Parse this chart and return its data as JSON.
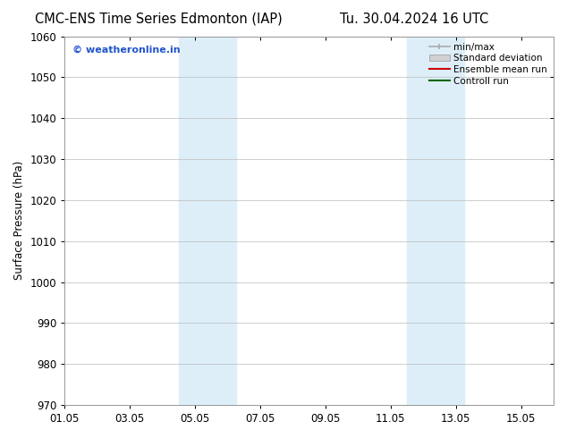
{
  "title_left": "CMC-ENS Time Series Edmonton (IAP)",
  "title_right": "Tu. 30.04.2024 16 UTC",
  "ylabel": "Surface Pressure (hPa)",
  "ylim": [
    970,
    1060
  ],
  "yticks": [
    970,
    980,
    990,
    1000,
    1010,
    1020,
    1030,
    1040,
    1050,
    1060
  ],
  "xtick_labels": [
    "01.05",
    "03.05",
    "05.05",
    "07.05",
    "09.05",
    "11.05",
    "13.05",
    "15.05"
  ],
  "xtick_positions": [
    0,
    2,
    4,
    6,
    8,
    10,
    12,
    14
  ],
  "xlim": [
    0,
    15
  ],
  "shaded_bands": [
    {
      "x_start": 3.5,
      "x_end": 5.25
    },
    {
      "x_start": 10.5,
      "x_end": 12.25
    }
  ],
  "shade_color": "#ddeef8",
  "watermark_text": "© weatheronline.in",
  "watermark_color": "#2255cc",
  "legend_entries": [
    "min/max",
    "Standard deviation",
    "Ensemble mean run",
    "Controll run"
  ],
  "bg_color": "#ffffff",
  "grid_color": "#bbbbbb",
  "title_fontsize": 10.5,
  "axis_label_fontsize": 8.5,
  "tick_fontsize": 8.5
}
